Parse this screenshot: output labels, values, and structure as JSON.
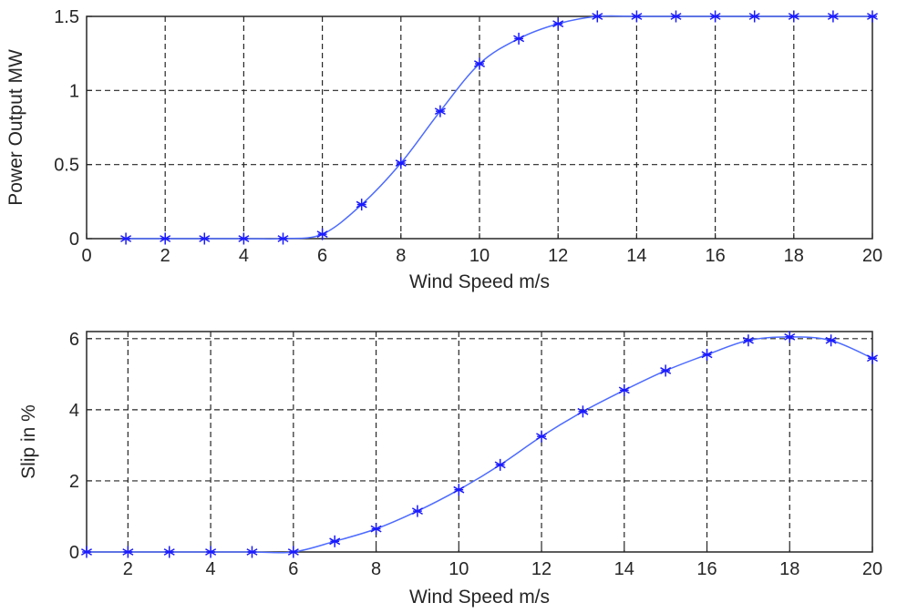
{
  "chart_data": [
    {
      "type": "line",
      "title": "",
      "xlabel": "Wind Speed m/s",
      "ylabel": "Power Output MW",
      "xlim": [
        0,
        20
      ],
      "ylim": [
        0,
        1.5
      ],
      "xticks": [
        0,
        2,
        4,
        6,
        8,
        10,
        12,
        14,
        16,
        18,
        20
      ],
      "yticks": [
        0,
        0.5,
        1,
        1.5
      ],
      "ytick_labels": [
        "0",
        "0.5",
        "1",
        "1.5"
      ],
      "grid": true,
      "line_color": "#4d6bff",
      "marker_color": "#1a1aff",
      "marker": "asterisk",
      "x": [
        1,
        2,
        3,
        4,
        5,
        6,
        7,
        8,
        9,
        10,
        11,
        12,
        13,
        14,
        15,
        16,
        17,
        18,
        19,
        20
      ],
      "values": [
        0,
        0,
        0,
        0,
        0,
        0.03,
        0.23,
        0.51,
        0.86,
        1.18,
        1.35,
        1.45,
        1.5,
        1.5,
        1.5,
        1.5,
        1.5,
        1.5,
        1.5,
        1.5
      ]
    },
    {
      "type": "line",
      "title": "",
      "xlabel": "Wind Speed m/s",
      "ylabel": "Slip in %",
      "xlim": [
        1,
        20
      ],
      "ylim": [
        0,
        6.2
      ],
      "xticks": [
        2,
        4,
        6,
        8,
        10,
        12,
        14,
        16,
        18,
        20
      ],
      "yticks": [
        0,
        2,
        4,
        6
      ],
      "ytick_labels": [
        "0",
        "2",
        "4",
        "6"
      ],
      "grid": true,
      "line_color": "#4d6bff",
      "marker_color": "#1a1aff",
      "marker": "asterisk",
      "x": [
        1,
        2,
        3,
        4,
        5,
        6,
        7,
        8,
        9,
        10,
        11,
        12,
        13,
        14,
        15,
        16,
        17,
        18,
        19,
        20
      ],
      "values": [
        0,
        0,
        0,
        0,
        0,
        0,
        0.3,
        0.65,
        1.15,
        1.75,
        2.45,
        3.25,
        3.95,
        4.55,
        5.1,
        5.55,
        5.95,
        6.05,
        5.95,
        5.45
      ]
    }
  ]
}
